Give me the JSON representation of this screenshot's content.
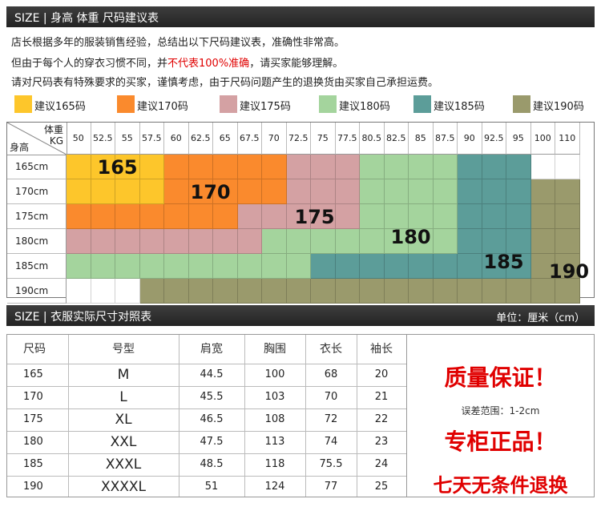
{
  "header1": {
    "size": "SIZE",
    "sep": "|",
    "title": "身高 体重 尺码建议表"
  },
  "intro": {
    "line1": "店长根据多年的服装销售经验，总结出以下尺码建议表，准确性非常高。",
    "line2_before": "但由于每个人的穿衣习惯不同，并",
    "line2_red": "不代表100%准确",
    "line2_after": "，请买家能够理解。",
    "line3": "请对尺码表有特殊要求的买家，谨慎考虑，由于尺码问题产生的退换货由买家自己承担运费。"
  },
  "colors": {
    "s165": "#FDC62B",
    "s170": "#FA8A2D",
    "s175": "#D4A1A3",
    "s180": "#A4D49D",
    "s185": "#5C9D99",
    "s190": "#9A9A6C",
    "red": "#E00000"
  },
  "legend": [
    {
      "label": "建议165码",
      "color": "#FDC62B"
    },
    {
      "label": "建议170码",
      "color": "#FA8A2D"
    },
    {
      "label": "建议175码",
      "color": "#D4A1A3"
    },
    {
      "label": "建议180码",
      "color": "#A4D49D"
    },
    {
      "label": "建议185码",
      "color": "#5C9D99"
    },
    {
      "label": "建议190码",
      "color": "#9A9A6C"
    }
  ],
  "grid": {
    "corner_weight": "体重",
    "corner_kg": "KG",
    "corner_height": "身高",
    "weights": [
      "50",
      "52.5",
      "55",
      "57.5",
      "60",
      "62.5",
      "65",
      "67.5",
      "70",
      "72.5",
      "75",
      "77.5",
      "80.5",
      "82.5",
      "85",
      "87.5",
      "90",
      "92.5",
      "95",
      "100",
      "110"
    ],
    "heights": [
      "165cm",
      "170cm",
      "175cm",
      "180cm",
      "185cm",
      "190cm"
    ],
    "cells": [
      [
        "165",
        "165",
        "165",
        "165",
        "170",
        "170",
        "170",
        "170",
        "170",
        "175",
        "175",
        "175",
        "180",
        "180",
        "180",
        "180",
        "185",
        "185",
        "185",
        "",
        ""
      ],
      [
        "165",
        "165",
        "165",
        "165",
        "170",
        "170",
        "170",
        "170",
        "170",
        "175",
        "175",
        "175",
        "180",
        "180",
        "180",
        "180",
        "185",
        "185",
        "185",
        "190",
        "190"
      ],
      [
        "170",
        "170",
        "170",
        "170",
        "170",
        "170",
        "170",
        "175",
        "175",
        "175",
        "175",
        "175",
        "180",
        "180",
        "180",
        "180",
        "185",
        "185",
        "185",
        "190",
        "190"
      ],
      [
        "175",
        "175",
        "175",
        "175",
        "175",
        "175",
        "175",
        "175",
        "180",
        "180",
        "180",
        "180",
        "180",
        "180",
        "180",
        "180",
        "185",
        "185",
        "185",
        "190",
        "190"
      ],
      [
        "180",
        "180",
        "180",
        "180",
        "180",
        "180",
        "180",
        "180",
        "180",
        "180",
        "185",
        "185",
        "185",
        "185",
        "185",
        "185",
        "185",
        "185",
        "185",
        "190",
        "190"
      ],
      [
        "",
        "",
        "",
        "190",
        "190",
        "190",
        "190",
        "190",
        "190",
        "190",
        "190",
        "190",
        "190",
        "190",
        "190",
        "190",
        "190",
        "190",
        "190",
        "190",
        "190"
      ]
    ],
    "labels": [
      {
        "text": "165",
        "row": 0,
        "col": 1
      },
      {
        "text": "170",
        "row": 1,
        "col": 5
      },
      {
        "text": "175",
        "row": 2,
        "col": 9
      },
      {
        "text": "180",
        "row": 3,
        "col": 13
      },
      {
        "text": "185",
        "row": 4,
        "col": 17
      },
      {
        "text": "190",
        "row": 4,
        "col": 20
      }
    ]
  },
  "header2": {
    "size": "SIZE",
    "sep": "|",
    "title": "衣服实际尺寸对照表",
    "unit": "单位：厘米（cm）"
  },
  "measure": {
    "columns": [
      "尺码",
      "号型",
      "肩宽",
      "胸围",
      "衣长",
      "袖长"
    ],
    "rows": [
      [
        "165",
        "M",
        "44.5",
        "100",
        "68",
        "20"
      ],
      [
        "170",
        "L",
        "45.5",
        "103",
        "70",
        "21"
      ],
      [
        "175",
        "XL",
        "46.5",
        "108",
        "72",
        "22"
      ],
      [
        "180",
        "XXL",
        "47.5",
        "113",
        "74",
        "23"
      ],
      [
        "185",
        "XXXL",
        "48.5",
        "118",
        "75.5",
        "24"
      ],
      [
        "190",
        "XXXXL",
        "51",
        "124",
        "77",
        "25"
      ]
    ]
  },
  "promo": {
    "quality": "质量保证！",
    "tolerance": "误差范围：1-2cm",
    "genuine": "专柜正品！",
    "returns": "七天无条件退换"
  }
}
